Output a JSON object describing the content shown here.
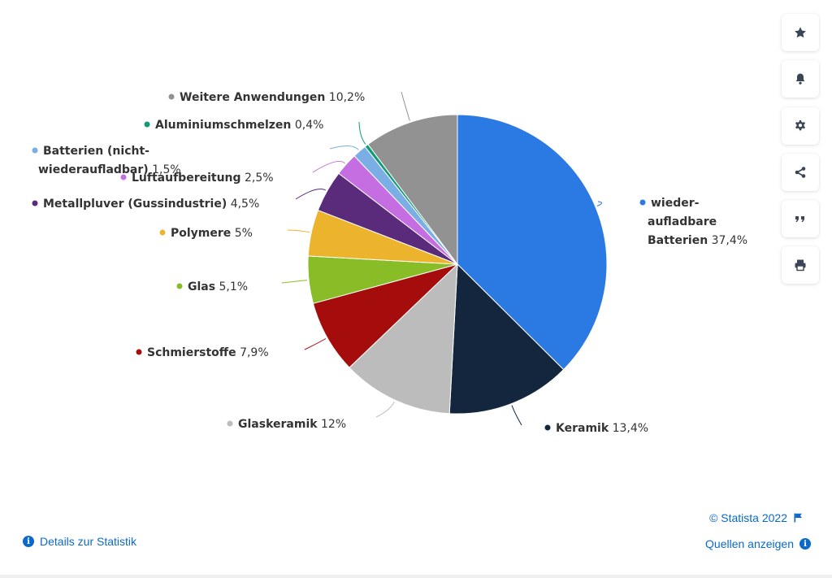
{
  "chart_data": {
    "type": "pie",
    "slices": [
      {
        "label": "wieder-aufladbare Batterien",
        "label_lines": [
          "wieder-",
          "aufladbare",
          "Batterien"
        ],
        "value": 37.4,
        "value_text": "37,4%",
        "color": "#2b79e3"
      },
      {
        "label": "Keramik",
        "label_lines": [
          "Keramik"
        ],
        "value": 13.4,
        "value_text": "13,4%",
        "color": "#13263e"
      },
      {
        "label": "Glaskeramik",
        "label_lines": [
          "Glaskeramik"
        ],
        "value": 12,
        "value_text": "12%",
        "color": "#bcbcbc"
      },
      {
        "label": "Schmierstoffe",
        "label_lines": [
          "Schmierstoffe"
        ],
        "value": 7.9,
        "value_text": "7,9%",
        "color": "#a50c0c"
      },
      {
        "label": "Glas",
        "label_lines": [
          "Glas"
        ],
        "value": 5.1,
        "value_text": "5,1%",
        "color": "#88bd28"
      },
      {
        "label": "Polymere",
        "label_lines": [
          "Polymere"
        ],
        "value": 5,
        "value_text": "5%",
        "color": "#ecb32d"
      },
      {
        "label": "Metallpluver (Gussindustrie)",
        "label_lines": [
          "Metallpluver (Gussindustrie)"
        ],
        "value": 4.5,
        "value_text": "4,5%",
        "color": "#5a2a7b"
      },
      {
        "label": "Luftaufbereitung",
        "label_lines": [
          "Luftaufbereitung"
        ],
        "value": 2.5,
        "value_text": "2,5%",
        "color": "#c46ee2"
      },
      {
        "label": "Batterien (nicht-wiederaufladbar)",
        "label_lines": [
          "Batterien (nicht-",
          "wiederaufladbar)"
        ],
        "value": 1.5,
        "value_text": "1,5%",
        "color": "#7aaee4"
      },
      {
        "label": "Aluminiumschmelzen",
        "label_lines": [
          "Aluminiumschmelzen"
        ],
        "value": 0.4,
        "value_text": "0,4%",
        "color": "#109a76"
      },
      {
        "label": "Weitere Anwendungen",
        "label_lines": [
          "Weitere Anwendungen"
        ],
        "value": 10.2,
        "value_text": "10,2%",
        "color": "#929292"
      }
    ]
  },
  "toolbar": {
    "icons": [
      "star-icon",
      "bell-icon",
      "gear-icon",
      "share-icon",
      "quote-icon",
      "print-icon"
    ]
  },
  "footer": {
    "copyright": "© Statista 2022",
    "details_link": "Details zur Statistik",
    "sources_link": "Quellen anzeigen"
  }
}
